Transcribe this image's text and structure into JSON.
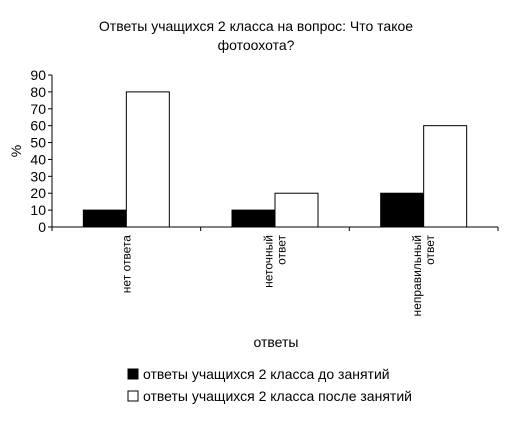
{
  "chart_data": {
    "type": "bar",
    "title_lines": [
      "Ответы учащихся 2 класса на вопрос: Что такое",
      "фотоохота?"
    ],
    "ylabel": "%",
    "xlabel": "ответы",
    "ylim": [
      0,
      90
    ],
    "yticks": [
      0,
      10,
      20,
      30,
      40,
      50,
      60,
      70,
      80,
      90
    ],
    "categories": [
      [
        "нет ответа"
      ],
      [
        "неточный",
        "ответ"
      ],
      [
        "неправильный",
        "ответ"
      ]
    ],
    "series": [
      {
        "name": "ответы учащихся 2 класса до занятий",
        "values": [
          10,
          10,
          20
        ],
        "color": "#000000"
      },
      {
        "name": "ответы учащихся 2 класса после занятий",
        "values": [
          80,
          20,
          60
        ],
        "color": "#ffffff"
      }
    ],
    "legend_position": "bottom",
    "grid": false
  }
}
